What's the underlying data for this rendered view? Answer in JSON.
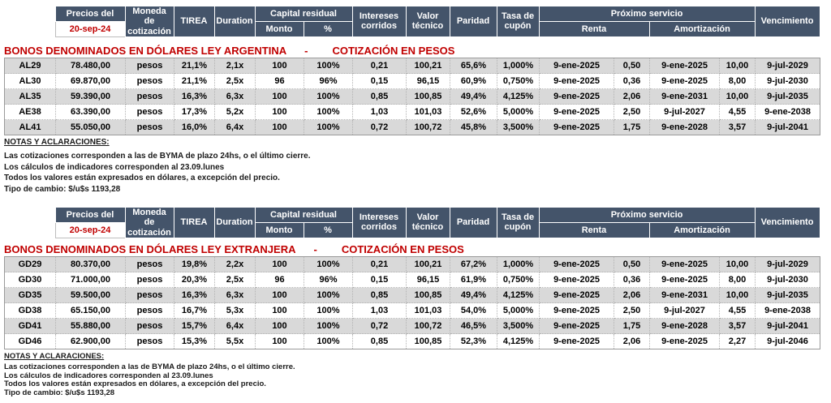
{
  "colors": {
    "header_bg": "#44546A",
    "row_stripe": "#D9D9D9",
    "accent_red": "#C00000"
  },
  "columns": {
    "precios_del": "Precios del",
    "price_date": "20-sep-24",
    "moneda": "Moneda de cotización",
    "tirea": "TIREA",
    "duration": "Duration",
    "capital_residual": "Capital residual",
    "monto": "Monto",
    "pct": "%",
    "intereses": "Intereses corridos",
    "valor_tecnico": "Valor técnico",
    "paridad": "Paridad",
    "tasa_cupon": "Tasa de cupón",
    "proximo_servicio": "Próximo servicio",
    "renta": "Renta",
    "amortizacion": "Amortización",
    "vencimiento": "Vencimiento"
  },
  "sections": [
    {
      "id": "ley-argentina",
      "title_left": "BONOS DENOMINADOS EN DÓLARES LEY ARGENTINA",
      "title_dash": "-",
      "title_right": "COTIZACIÓN EN PESOS",
      "rows": [
        {
          "ticker": "AL29",
          "precio": "78.480,00",
          "moneda": "pesos",
          "tirea": "21,1%",
          "duration": "2,1x",
          "monto": "100",
          "pct": "100%",
          "intereses": "0,21",
          "valor_tecnico": "100,21",
          "paridad": "65,6%",
          "tasa_cupon": "1,000%",
          "renta_fecha": "9-ene-2025",
          "renta_monto": "0,50",
          "amort_fecha": "9-ene-2025",
          "amort_monto": "10,00",
          "vencimiento": "9-jul-2029"
        },
        {
          "ticker": "AL30",
          "precio": "69.870,00",
          "moneda": "pesos",
          "tirea": "21,1%",
          "duration": "2,5x",
          "monto": "96",
          "pct": "96%",
          "intereses": "0,15",
          "valor_tecnico": "96,15",
          "paridad": "60,9%",
          "tasa_cupon": "0,750%",
          "renta_fecha": "9-ene-2025",
          "renta_monto": "0,36",
          "amort_fecha": "9-ene-2025",
          "amort_monto": "8,00",
          "vencimiento": "9-jul-2030"
        },
        {
          "ticker": "AL35",
          "precio": "59.390,00",
          "moneda": "pesos",
          "tirea": "16,3%",
          "duration": "6,3x",
          "monto": "100",
          "pct": "100%",
          "intereses": "0,85",
          "valor_tecnico": "100,85",
          "paridad": "49,4%",
          "tasa_cupon": "4,125%",
          "renta_fecha": "9-ene-2025",
          "renta_monto": "2,06",
          "amort_fecha": "9-ene-2031",
          "amort_monto": "10,00",
          "vencimiento": "9-jul-2035"
        },
        {
          "ticker": "AE38",
          "precio": "63.390,00",
          "moneda": "pesos",
          "tirea": "17,3%",
          "duration": "5,2x",
          "monto": "100",
          "pct": "100%",
          "intereses": "1,03",
          "valor_tecnico": "101,03",
          "paridad": "52,6%",
          "tasa_cupon": "5,000%",
          "renta_fecha": "9-ene-2025",
          "renta_monto": "2,50",
          "amort_fecha": "9-jul-2027",
          "amort_monto": "4,55",
          "vencimiento": "9-ene-2038"
        },
        {
          "ticker": "AL41",
          "precio": "55.050,00",
          "moneda": "pesos",
          "tirea": "16,0%",
          "duration": "6,4x",
          "monto": "100",
          "pct": "100%",
          "intereses": "0,72",
          "valor_tecnico": "100,72",
          "paridad": "45,8%",
          "tasa_cupon": "3,500%",
          "renta_fecha": "9-ene-2025",
          "renta_monto": "1,75",
          "amort_fecha": "9-ene-2028",
          "amort_monto": "3,57",
          "vencimiento": "9-jul-2041"
        }
      ],
      "notes_heading": "NOTAS Y ACLARACIONES:",
      "notes_lines": [
        "Las cotizaciones corresponden a las de BYMA de plazo 24hs, o el último cierre.",
        "Los cálculos de indicadores corresponden al 23.09.lunes",
        "Todos los valores están expresados en dólares, a excepción del precio.",
        "Tipo de cambio: $/u$s 1193,28"
      ]
    },
    {
      "id": "ley-extranjera",
      "title_left": "BONOS DENOMINADOS EN DÓLARES LEY EXTRANJERA",
      "title_dash": "-",
      "title_right": "COTIZACIÓN EN PESOS",
      "rows": [
        {
          "ticker": "GD29",
          "precio": "80.370,00",
          "moneda": "pesos",
          "tirea": "19,8%",
          "duration": "2,2x",
          "monto": "100",
          "pct": "100%",
          "intereses": "0,21",
          "valor_tecnico": "100,21",
          "paridad": "67,2%",
          "tasa_cupon": "1,000%",
          "renta_fecha": "9-ene-2025",
          "renta_monto": "0,50",
          "amort_fecha": "9-ene-2025",
          "amort_monto": "10,00",
          "vencimiento": "9-jul-2029"
        },
        {
          "ticker": "GD30",
          "precio": "71.000,00",
          "moneda": "pesos",
          "tirea": "20,3%",
          "duration": "2,5x",
          "monto": "96",
          "pct": "96%",
          "intereses": "0,15",
          "valor_tecnico": "96,15",
          "paridad": "61,9%",
          "tasa_cupon": "0,750%",
          "renta_fecha": "9-ene-2025",
          "renta_monto": "0,36",
          "amort_fecha": "9-ene-2025",
          "amort_monto": "8,00",
          "vencimiento": "9-jul-2030"
        },
        {
          "ticker": "GD35",
          "precio": "59.500,00",
          "moneda": "pesos",
          "tirea": "16,3%",
          "duration": "6,3x",
          "monto": "100",
          "pct": "100%",
          "intereses": "0,85",
          "valor_tecnico": "100,85",
          "paridad": "49,4%",
          "tasa_cupon": "4,125%",
          "renta_fecha": "9-ene-2025",
          "renta_monto": "2,06",
          "amort_fecha": "9-ene-2031",
          "amort_monto": "10,00",
          "vencimiento": "9-jul-2035"
        },
        {
          "ticker": "GD38",
          "precio": "65.150,00",
          "moneda": "pesos",
          "tirea": "16,7%",
          "duration": "5,3x",
          "monto": "100",
          "pct": "100%",
          "intereses": "1,03",
          "valor_tecnico": "101,03",
          "paridad": "54,0%",
          "tasa_cupon": "5,000%",
          "renta_fecha": "9-ene-2025",
          "renta_monto": "2,50",
          "amort_fecha": "9-jul-2027",
          "amort_monto": "4,55",
          "vencimiento": "9-ene-2038"
        },
        {
          "ticker": "GD41",
          "precio": "55.880,00",
          "moneda": "pesos",
          "tirea": "15,7%",
          "duration": "6,4x",
          "monto": "100",
          "pct": "100%",
          "intereses": "0,72",
          "valor_tecnico": "100,72",
          "paridad": "46,5%",
          "tasa_cupon": "3,500%",
          "renta_fecha": "9-ene-2025",
          "renta_monto": "1,75",
          "amort_fecha": "9-ene-2028",
          "amort_monto": "3,57",
          "vencimiento": "9-jul-2041"
        },
        {
          "ticker": "GD46",
          "precio": "62.900,00",
          "moneda": "pesos",
          "tirea": "15,3%",
          "duration": "5,5x",
          "monto": "100",
          "pct": "100%",
          "intereses": "0,85",
          "valor_tecnico": "100,85",
          "paridad": "52,3%",
          "tasa_cupon": "4,125%",
          "renta_fecha": "9-ene-2025",
          "renta_monto": "2,06",
          "amort_fecha": "9-ene-2025",
          "amort_monto": "2,27",
          "vencimiento": "9-jul-2046"
        }
      ],
      "notes_heading": "NOTAS Y ACLARACIONES:",
      "notes_lines": [
        "Las cotizaciones corresponden a las de BYMA de plazo 24hs, o el último cierre.",
        "Los cálculos de indicadores corresponden al 23.09.lunes",
        "Todos los valores están expresados en dólares, a excepción del precio.",
        "Tipo de cambio: $/u$s 1193,28"
      ]
    }
  ]
}
